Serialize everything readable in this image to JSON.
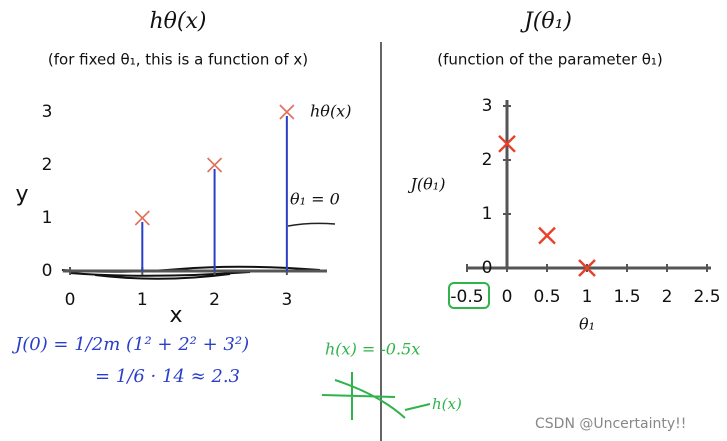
{
  "chart_data": [
    {
      "type": "scatter",
      "title": "hθ(x)",
      "subtitle": "(for fixed θ₁, this is a function of x)",
      "x_label": "x",
      "y_label": "y",
      "x": [
        1,
        2,
        3
      ],
      "values": [
        1,
        2,
        3
      ],
      "color": "#e0705a",
      "xlim": [
        -0.1,
        3.5
      ],
      "ylim": [
        0,
        3
      ],
      "xticks": [
        0,
        1,
        2,
        3
      ],
      "yticks": [
        0,
        1,
        2,
        3
      ],
      "annotations": [
        "hθ(x)",
        "θ₁ = 0"
      ]
    },
    {
      "type": "scatter",
      "title": "J(θ₁)",
      "subtitle": "(function of the parameter θ₁)",
      "x_label": "θ₁",
      "y_label": "J(θ₁)",
      "x": [
        0,
        0.5,
        1
      ],
      "values": [
        2.3,
        0.6,
        0
      ],
      "color": "#e8402a",
      "xlim": [
        -0.5,
        2.5
      ],
      "ylim": [
        0,
        3
      ],
      "xticks": [
        -0.5,
        0,
        0.5,
        1,
        1.5,
        2,
        2.5
      ],
      "yticks": [
        0,
        1,
        2,
        3
      ]
    }
  ],
  "notes": {
    "cost": [
      "J(0) = 1/2m (1² + 2² + 3²)",
      "= 1/6 · 14 ≈ 2.3"
    ],
    "green": [
      "h(x) = -0.5x",
      "h(x)"
    ]
  },
  "watermark": "CSDN @Uncertainty!!"
}
